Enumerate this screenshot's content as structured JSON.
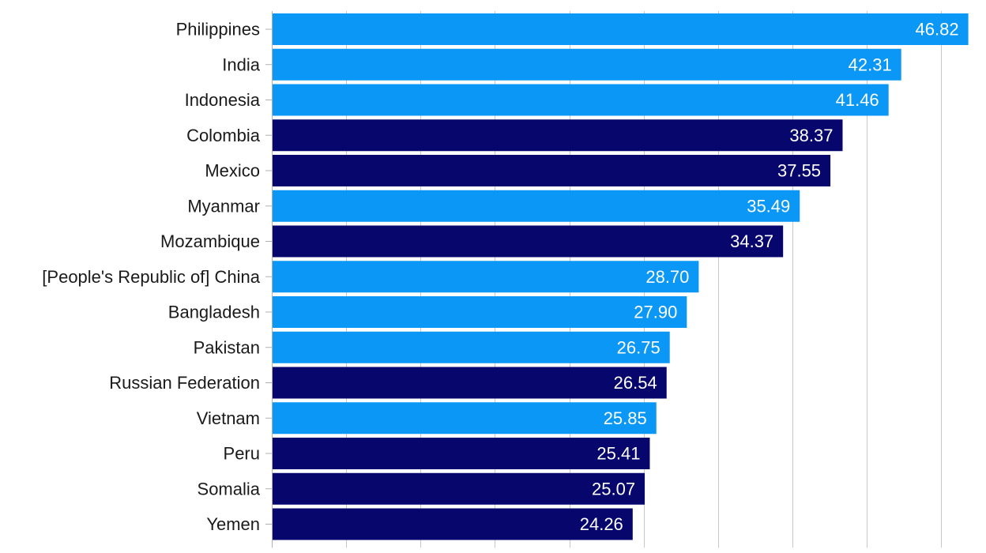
{
  "chart_data": {
    "type": "bar",
    "orientation": "horizontal",
    "categories": [
      "Philippines",
      "India",
      "Indonesia",
      "Colombia",
      "Mexico",
      "Myanmar",
      "Mozambique",
      "[People's Republic of] China",
      "Bangladesh",
      "Pakistan",
      "Russian Federation",
      "Vietnam",
      "Peru",
      "Somalia",
      "Yemen"
    ],
    "values": [
      46.82,
      42.31,
      41.46,
      38.37,
      37.55,
      35.49,
      34.37,
      28.7,
      27.9,
      26.75,
      26.54,
      25.85,
      25.41,
      25.07,
      24.26
    ],
    "value_labels": [
      "46.82",
      "42.31",
      "41.46",
      "38.37",
      "37.55",
      "35.49",
      "34.37",
      "28.70",
      "27.90",
      "26.75",
      "26.54",
      "25.85",
      "25.41",
      "25.07",
      "24.26"
    ],
    "bar_groups": [
      "light",
      "light",
      "light",
      "dark",
      "dark",
      "light",
      "dark",
      "light",
      "light",
      "light",
      "dark",
      "light",
      "dark",
      "dark",
      "dark"
    ],
    "colors": {
      "light": "#0a97f5",
      "dark": "#06066d"
    },
    "xlim": [
      0,
      47
    ],
    "grid": true,
    "gridline_interval": 5,
    "legend": "none"
  }
}
